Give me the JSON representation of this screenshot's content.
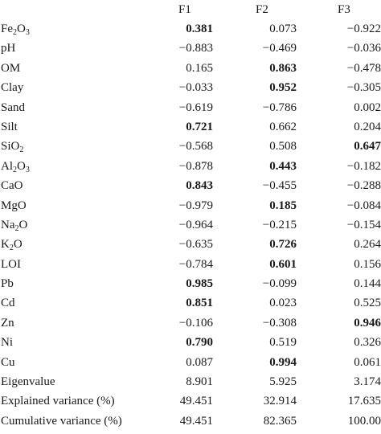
{
  "columns": [
    "F1",
    "F2",
    "F3"
  ],
  "rows": [
    {
      "label": "Fe",
      "sub": "2",
      "label2": "O",
      "sub2": "3",
      "values": [
        "0.381",
        "0.073",
        "−0.922"
      ],
      "bold": [
        true,
        false,
        false
      ]
    },
    {
      "label": "pH",
      "values": [
        "−0.883",
        "−0.469",
        "−0.036"
      ],
      "bold": [
        false,
        false,
        false
      ]
    },
    {
      "label": "OM",
      "values": [
        "0.165",
        "0.863",
        "−0.478"
      ],
      "bold": [
        false,
        true,
        false
      ]
    },
    {
      "label": "Clay",
      "values": [
        "−0.033",
        "0.952",
        "−0.305"
      ],
      "bold": [
        false,
        true,
        false
      ]
    },
    {
      "label": "Sand",
      "values": [
        "−0.619",
        "−0.786",
        "0.002"
      ],
      "bold": [
        false,
        false,
        false
      ]
    },
    {
      "label": "Silt",
      "values": [
        "0.721",
        "0.662",
        "0.204"
      ],
      "bold": [
        true,
        false,
        false
      ]
    },
    {
      "label": "SiO",
      "sub": "2",
      "values": [
        "−0.568",
        "0.508",
        "0.647"
      ],
      "bold": [
        false,
        false,
        true
      ]
    },
    {
      "label": "Al",
      "sub": "2",
      "label2": "O",
      "sub2": "3",
      "values": [
        "−0.878",
        "0.443",
        "−0.182"
      ],
      "bold": [
        false,
        true,
        false
      ]
    },
    {
      "label": "CaO",
      "values": [
        "0.843",
        "−0.455",
        "−0.288"
      ],
      "bold": [
        true,
        false,
        false
      ]
    },
    {
      "label": "MgO",
      "values": [
        "−0.979",
        "0.185",
        "−0.084"
      ],
      "bold": [
        false,
        true,
        false
      ]
    },
    {
      "label": "Na",
      "sub": "2",
      "label2": "O",
      "values": [
        "−0.964",
        "−0.215",
        "−0.154"
      ],
      "bold": [
        false,
        false,
        false
      ]
    },
    {
      "label": "K",
      "sub": "2",
      "label2": "O",
      "values": [
        "−0.635",
        "0.726",
        "0.264"
      ],
      "bold": [
        false,
        true,
        false
      ]
    },
    {
      "label": "LOI",
      "values": [
        "−0.784",
        "0.601",
        "0.156"
      ],
      "bold": [
        false,
        true,
        false
      ]
    },
    {
      "label": "Pb",
      "values": [
        "0.985",
        "−0.099",
        "0.144"
      ],
      "bold": [
        true,
        false,
        false
      ]
    },
    {
      "label": "Cd",
      "values": [
        "0.851",
        "0.023",
        "0.525"
      ],
      "bold": [
        true,
        false,
        false
      ]
    },
    {
      "label": "Zn",
      "values": [
        "−0.106",
        "−0.308",
        "0.946"
      ],
      "bold": [
        false,
        false,
        true
      ]
    },
    {
      "label": "Ni",
      "values": [
        "0.790",
        "0.519",
        "0.326"
      ],
      "bold": [
        true,
        false,
        false
      ]
    },
    {
      "label": "Cu",
      "values": [
        "0.087",
        "0.994",
        "0.061"
      ],
      "bold": [
        false,
        true,
        false
      ]
    },
    {
      "label": "Eigenvalue",
      "values": [
        "8.901",
        "5.925",
        "3.174"
      ],
      "bold": [
        false,
        false,
        false
      ]
    },
    {
      "label": "Explained variance (%)",
      "values": [
        "49.451",
        "32.914",
        "17.635"
      ],
      "bold": [
        false,
        false,
        false
      ]
    },
    {
      "label": "Cumulative variance (%)",
      "values": [
        "49.451",
        "82.365",
        "100.00"
      ],
      "bold": [
        false,
        false,
        false
      ]
    }
  ]
}
